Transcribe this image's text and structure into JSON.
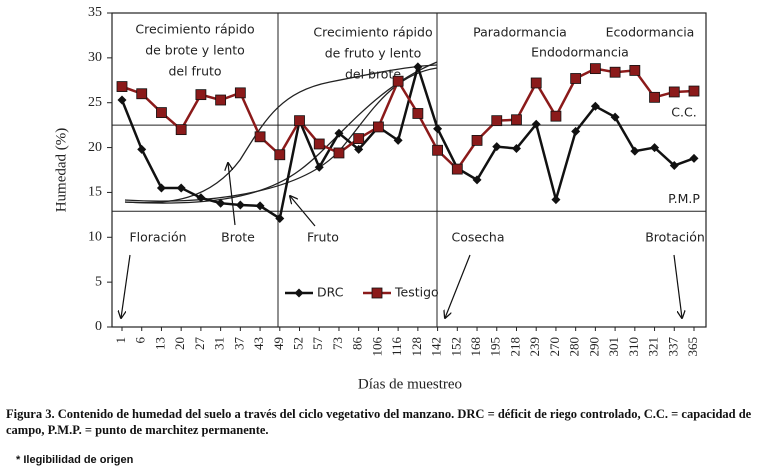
{
  "chart_data": {
    "type": "line",
    "xlabel": "Días de muestreo",
    "ylabel": "Humedad (%)",
    "categories": [
      "1",
      "6",
      "13",
      "20",
      "27",
      "31",
      "37",
      "43",
      "49",
      "52",
      "57",
      "73",
      "86",
      "106",
      "116",
      "128",
      "142",
      "152",
      "168",
      "195",
      "218",
      "239",
      "270",
      "280",
      "290",
      "301",
      "310",
      "321",
      "337",
      "365"
    ],
    "series": [
      {
        "name": "DRC",
        "color": "#111111",
        "marker": "diamond",
        "values": [
          25.3,
          19.8,
          15.5,
          15.5,
          14.4,
          13.8,
          13.6,
          13.5,
          12.1,
          23.0,
          17.8,
          21.6,
          19.8,
          22.3,
          20.8,
          29.0,
          22.1,
          17.7,
          16.4,
          20.1,
          19.9,
          22.6,
          14.2,
          21.8,
          24.6,
          23.4,
          19.6,
          20.0,
          18.0,
          18.8
        ]
      },
      {
        "name": "Testigo",
        "color": "#8b1a1a",
        "marker": "square",
        "values": [
          26.8,
          26.0,
          23.9,
          22.0,
          25.9,
          25.3,
          26.1,
          21.2,
          19.2,
          23.0,
          20.4,
          19.4,
          21.0,
          22.3,
          27.4,
          23.8,
          19.7,
          17.6,
          20.8,
          23.0,
          23.1,
          27.2,
          23.5,
          27.7,
          28.8,
          28.4,
          28.6,
          25.6,
          26.2,
          26.3
        ]
      }
    ],
    "ylim": [
      0,
      35
    ],
    "yticks": [
      0,
      5,
      10,
      15,
      20,
      25,
      30,
      35
    ],
    "reference_lines": [
      {
        "label": "C.C.",
        "value": 22.5
      },
      {
        "label": "P.M.P",
        "value": 12.9
      }
    ],
    "annotations": [
      [
        "Crecimiento rápido",
        "de brote y lento",
        "del fruto"
      ],
      [
        "Crecimiento rápido",
        "de fruto y lento",
        "del brote"
      ],
      [
        "Paradormancia"
      ],
      [
        "Endodormancia"
      ],
      [
        "Ecodormancia"
      ],
      [
        "Floración"
      ],
      [
        "Brote"
      ],
      [
        "Fruto"
      ],
      [
        "Cosecha"
      ],
      [
        "Brotación"
      ]
    ],
    "caption": "Figura 3. Contenido de humedad del suelo a través del ciclo vegetativo del manzano. DRC = déficit de riego controlado, C.C. = capacidad de campo, P.M.P. = punto de marchitez permanente.",
    "note": "* Ilegibilidad de origen"
  }
}
